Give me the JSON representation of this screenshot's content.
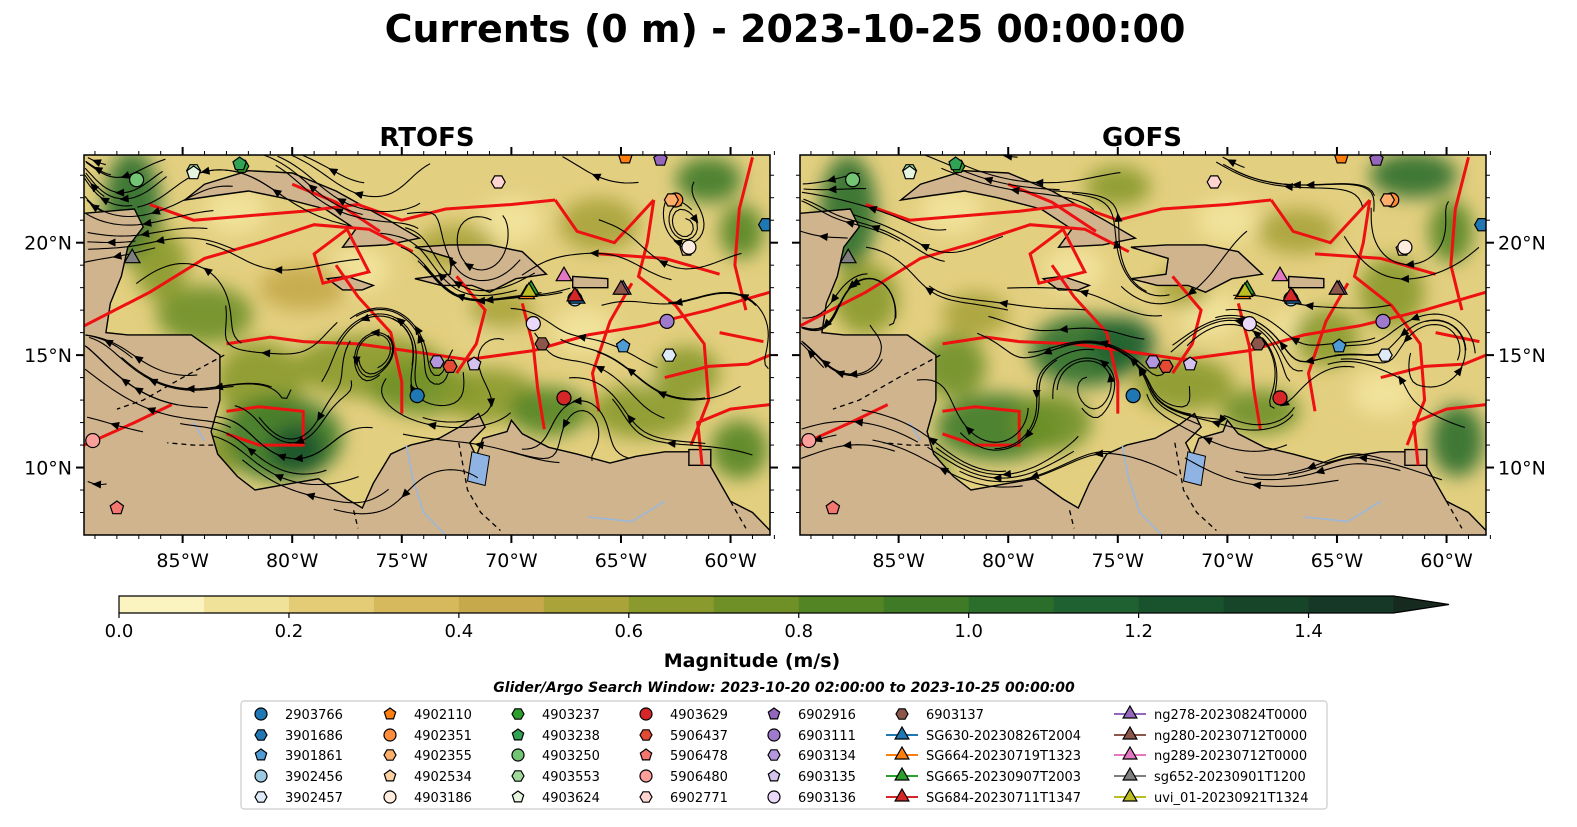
{
  "figure": {
    "title": "Currents (0 m) - 2023-10-25 00:00:00",
    "panels": [
      {
        "title": "RTOFS"
      },
      {
        "title": "GOFS"
      }
    ],
    "lon_ticks": [
      "85°W",
      "80°W",
      "75°W",
      "70°W",
      "65°W",
      "60°W"
    ],
    "lat_ticks": [
      "20°N",
      "15°N",
      "10°N"
    ],
    "colorbar": {
      "label": "Magnitude (m/s)",
      "ticks": [
        "0.0",
        "0.2",
        "0.4",
        "0.6",
        "0.8",
        "1.0",
        "1.2",
        "1.4"
      ]
    },
    "subtitle": "Glider/Argo Search Window: 2023-10-20 02:00:00 to 2023-10-25 00:00:00"
  },
  "chart_data": {
    "type": "heatmap",
    "title": "Currents (0 m) - 2023-10-25 00:00:00",
    "panels": [
      "RTOFS",
      "GOFS"
    ],
    "x_ticks": [
      "85°W",
      "80°W",
      "75°W",
      "70°W",
      "65°W",
      "60°W"
    ],
    "y_ticks": [
      "20°N",
      "15°N",
      "10°N"
    ],
    "xlim": [
      -89.5,
      -58.2
    ],
    "ylim": [
      7.0,
      23.9
    ],
    "colorbar": {
      "label": "Magnitude (m/s)",
      "range": [
        0.0,
        1.5
      ],
      "extend": "max",
      "levels": [
        0,
        0.1,
        0.2,
        0.3,
        0.4,
        0.5,
        0.6,
        0.7,
        0.8,
        0.9,
        1.0,
        1.1,
        1.2,
        1.3,
        1.4,
        1.5
      ],
      "colors": [
        "#fbf4c0",
        "#f1e29a",
        "#e4cc77",
        "#d6b95c",
        "#c5a94a",
        "#a9a33a",
        "#8a9a2c",
        "#6f9027",
        "#548525",
        "#3f7a27",
        "#2b6e2b",
        "#1f6131",
        "#19532e",
        "#17452a",
        "#163827",
        "#172a1f"
      ]
    },
    "subtitle": "Glider/Argo Search Window: 2023-10-20 02:00:00 to 2023-10-25 00:00:00",
    "floats": [
      {
        "id": "2903766",
        "marker": "circle",
        "color": "#1f77b4",
        "lon": -74.3,
        "lat": 13.2
      },
      {
        "id": "3901686",
        "marker": "hexagon",
        "color": "#1f77b4",
        "lon": -58.4,
        "lat": 20.8
      },
      {
        "id": "3901861",
        "marker": "pentagon",
        "color": "#4f9bd6",
        "lon": -64.9,
        "lat": 15.4
      },
      {
        "id": "3902456",
        "marker": "circle",
        "color": "#9ecae1",
        "lon": -67.1,
        "lat": 17.5
      },
      {
        "id": "3902457",
        "marker": "hexagon",
        "color": "#deebf7",
        "lon": -62.8,
        "lat": 15.0
      },
      {
        "id": "4902110",
        "marker": "pentagon",
        "color": "#ff7f0e",
        "lon": -64.8,
        "lat": 23.8
      },
      {
        "id": "4902351",
        "marker": "circle",
        "color": "#fd8d3c",
        "lon": -62.5,
        "lat": 21.9
      },
      {
        "id": "4902355",
        "marker": "hexagon",
        "color": "#fdae6b",
        "lon": -62.7,
        "lat": 21.9
      },
      {
        "id": "4902534",
        "marker": "pentagon",
        "color": "#fdd0a2",
        "lon": -62.0,
        "lat": 19.7
      },
      {
        "id": "4903186",
        "marker": "circle",
        "color": "#feedde",
        "lon": -61.9,
        "lat": 19.8
      },
      {
        "id": "4903237",
        "marker": "hexagon",
        "color": "#2ca02c",
        "lon": -82.3,
        "lat": 23.4
      },
      {
        "id": "4903238",
        "marker": "pentagon",
        "color": "#31a354",
        "lon": -82.4,
        "lat": 23.5
      },
      {
        "id": "4903250",
        "marker": "circle",
        "color": "#74c476",
        "lon": -87.1,
        "lat": 22.8
      },
      {
        "id": "4903553",
        "marker": "hexagon",
        "color": "#a1d99b",
        "lon": -84.5,
        "lat": 23.2
      },
      {
        "id": "4903624",
        "marker": "pentagon",
        "color": "#e5f5e0",
        "lon": -84.5,
        "lat": 23.1
      },
      {
        "id": "4903629",
        "marker": "circle",
        "color": "#d62728",
        "lon": -67.6,
        "lat": 13.1
      },
      {
        "id": "5906437",
        "marker": "hexagon",
        "color": "#e34a33",
        "lon": -72.8,
        "lat": 14.5
      },
      {
        "id": "5906478",
        "marker": "pentagon",
        "color": "#f4776f",
        "lon": -88.0,
        "lat": 8.2
      },
      {
        "id": "5906480",
        "marker": "circle",
        "color": "#fc9e9a",
        "lon": -89.1,
        "lat": 11.2
      },
      {
        "id": "6902771",
        "marker": "hexagon",
        "color": "#fdd4d0",
        "lon": -70.6,
        "lat": 22.7
      },
      {
        "id": "6902916",
        "marker": "pentagon",
        "color": "#9467bd",
        "lon": -63.2,
        "lat": 23.7
      },
      {
        "id": "6903111",
        "marker": "circle",
        "color": "#9e79cc",
        "lon": -62.9,
        "lat": 16.5
      },
      {
        "id": "6903134",
        "marker": "hexagon",
        "color": "#b497dd",
        "lon": -73.4,
        "lat": 14.7
      },
      {
        "id": "6903135",
        "marker": "pentagon",
        "color": "#d4c2ef",
        "lon": -71.7,
        "lat": 14.6
      },
      {
        "id": "6903136",
        "marker": "circle",
        "color": "#ead9fb",
        "lon": -69.0,
        "lat": 16.4
      },
      {
        "id": "6903137",
        "marker": "hexagon",
        "color": "#8c564b",
        "lon": -68.6,
        "lat": 15.5
      }
    ],
    "gliders": [
      {
        "id": "SG630-20230826T2004",
        "marker": "triangle",
        "color": "#1f77b4",
        "lon": -67.0,
        "lat": 17.6
      },
      {
        "id": "SG664-20230719T1323",
        "marker": "triangle",
        "color": "#ff7f0e",
        "lon": -69.3,
        "lat": 17.8
      },
      {
        "id": "SG665-20230907T2003",
        "marker": "triangle",
        "color": "#2ca02c",
        "lon": -69.1,
        "lat": 18.0
      },
      {
        "id": "SG684-20230711T1347",
        "marker": "triangle",
        "color": "#d62728",
        "lon": -67.1,
        "lat": 17.7
      },
      {
        "id": "ng278-20230824T0000",
        "marker": "triangle",
        "color": "#9467bd",
        "lon": -64.9,
        "lat": 18.0
      },
      {
        "id": "ng280-20230712T0000",
        "marker": "triangle",
        "color": "#8c564b",
        "lon": -65.0,
        "lat": 18.0
      },
      {
        "id": "ng289-20230712T0000",
        "marker": "triangle",
        "color": "#e377c2",
        "lon": -67.6,
        "lat": 18.6
      },
      {
        "id": "sg652-20230901T1200",
        "marker": "triangle",
        "color": "#7f7f7f",
        "lon": -87.3,
        "lat": 19.4
      },
      {
        "id": "uvi_01-20230921T1324",
        "marker": "triangle",
        "color": "#bcbd22",
        "lon": -69.2,
        "lat": 17.9
      }
    ]
  }
}
